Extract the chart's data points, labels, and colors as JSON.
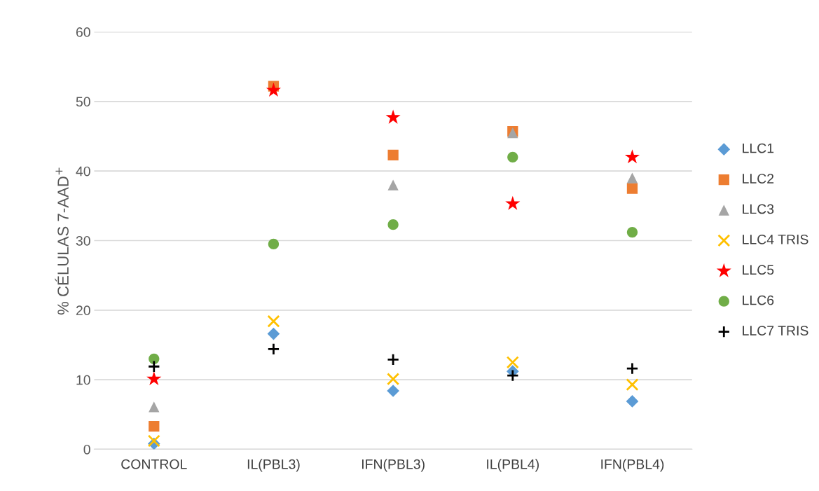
{
  "chart_data": {
    "type": "scatter",
    "ylabel": "% CÉLULAS 7-AAD$^{+}$",
    "categories": [
      "CONTROL",
      "IL(PBL3)",
      "IFN(PBL3)",
      "IL(PBL4)",
      "IFN(PBL4)"
    ],
    "series": [
      {
        "name": "LLC1",
        "color": "#5b9bd5",
        "marker": "diamond",
        "values": [
          0.8,
          16.6,
          8.4,
          11.2,
          6.9
        ]
      },
      {
        "name": "LLC2",
        "color": "#ed7d31",
        "marker": "square",
        "values": [
          3.3,
          52.2,
          42.3,
          45.7,
          37.5
        ]
      },
      {
        "name": "LLC3",
        "color": "#a5a5a5",
        "marker": "triangle",
        "values": [
          6.1,
          null,
          38.0,
          45.5,
          39.0
        ]
      },
      {
        "name": "LLC4 TRIS",
        "color": "#ffc000",
        "marker": "cross",
        "values": [
          1.2,
          18.4,
          10.1,
          12.5,
          9.3
        ]
      },
      {
        "name": "LLC5",
        "color": "#ff0000",
        "marker": "star",
        "values": [
          10.1,
          51.6,
          47.7,
          35.3,
          42.0
        ]
      },
      {
        "name": "LLC6",
        "color": "#70ad47",
        "marker": "circle",
        "values": [
          13.0,
          29.5,
          32.3,
          42.0,
          31.2
        ]
      },
      {
        "name": "LLC7 TRIS",
        "color": "#000000",
        "marker": "plus",
        "values": [
          11.9,
          14.4,
          12.9,
          10.6,
          11.6
        ]
      }
    ],
    "ylim": [
      0,
      60
    ],
    "yticks": [
      0,
      10,
      20,
      30,
      40,
      50,
      60
    ],
    "grid": "y",
    "legend": "right"
  }
}
